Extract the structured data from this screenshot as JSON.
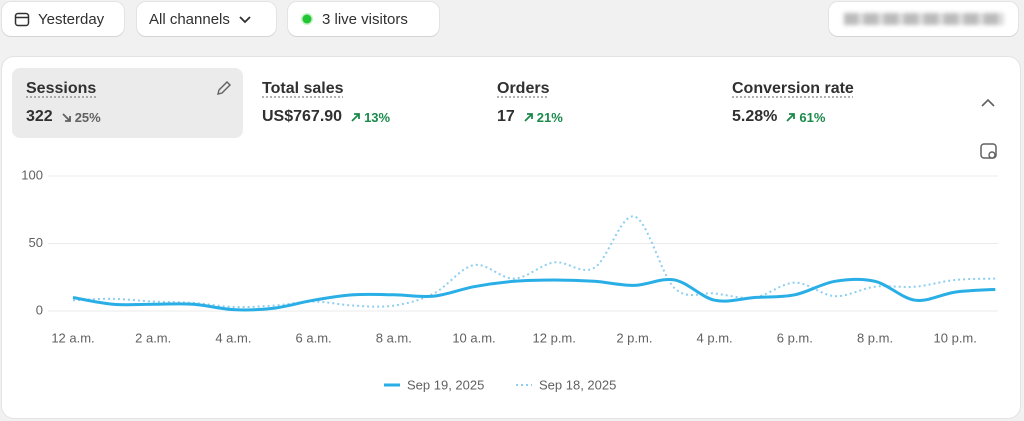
{
  "toolbar": {
    "date": "Yesterday",
    "channels": "All channels",
    "live": "3 live visitors"
  },
  "metrics": [
    {
      "label": "Sessions",
      "value": "322",
      "change": "25%"
    },
    {
      "label": "Total sales",
      "value": "US$767.90",
      "change": "13%"
    },
    {
      "label": "Orders",
      "value": "17",
      "change": "21%"
    },
    {
      "label": "Conversion rate",
      "value": "5.28%",
      "change": "61%"
    }
  ],
  "chart_data": {
    "type": "line",
    "categories": [
      "12 a.m.",
      null,
      "2 a.m.",
      null,
      "4 a.m.",
      null,
      "6 a.m.",
      null,
      "8 a.m.",
      null,
      "10 a.m.",
      null,
      "12 p.m.",
      null,
      "2 p.m.",
      null,
      "4 p.m.",
      null,
      "6 p.m.",
      null,
      "8 p.m.",
      null,
      "10 p.m.",
      null
    ],
    "series": [
      {
        "name": "Sep 19, 2025",
        "color": "#29aee6",
        "style": "solid",
        "values": [
          10,
          5,
          5,
          5,
          1,
          2,
          8,
          12,
          12,
          11,
          18,
          22,
          23,
          22,
          19,
          23,
          8,
          10,
          12,
          22,
          22,
          8,
          14,
          16
        ]
      },
      {
        "name": "Sep 18, 2025",
        "color": "#8ecff0",
        "style": "dotted",
        "values": [
          8,
          9,
          7,
          6,
          3,
          4,
          7,
          4,
          4,
          13,
          34,
          24,
          36,
          32,
          70,
          17,
          13,
          10,
          21,
          11,
          18,
          18,
          23,
          24
        ]
      }
    ],
    "ylim": [
      0,
      100
    ],
    "yticks": [
      0,
      50,
      100
    ],
    "grid": true
  }
}
